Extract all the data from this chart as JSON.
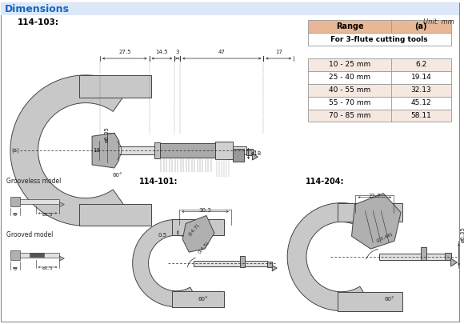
{
  "title": "Dimensions",
  "title_color": "#1565c0",
  "bg_color": "#ffffff",
  "border_color": "#aaaaaa",
  "unit_text": "Unit: mm",
  "table": {
    "header": [
      "Range",
      "(a)"
    ],
    "subheader": "For 3-flute cutting tools",
    "rows": [
      [
        "10 - 25 mm",
        "6.2"
      ],
      [
        "25 - 40 mm",
        "19.14"
      ],
      [
        "40 - 55 mm",
        "32.13"
      ],
      [
        "55 - 70 mm",
        "45.12"
      ],
      [
        "70 - 85 mm",
        "58.11"
      ]
    ],
    "header_bg": "#e8b896",
    "row_bg_odd": "#f5e8e0",
    "row_bg_even": "#ffffff"
  },
  "labels": {
    "model103": "114-103:",
    "model101": "114-101:",
    "model204": "114-204:",
    "grooveless": "Grooveless model",
    "grooved": "Grooved model"
  }
}
